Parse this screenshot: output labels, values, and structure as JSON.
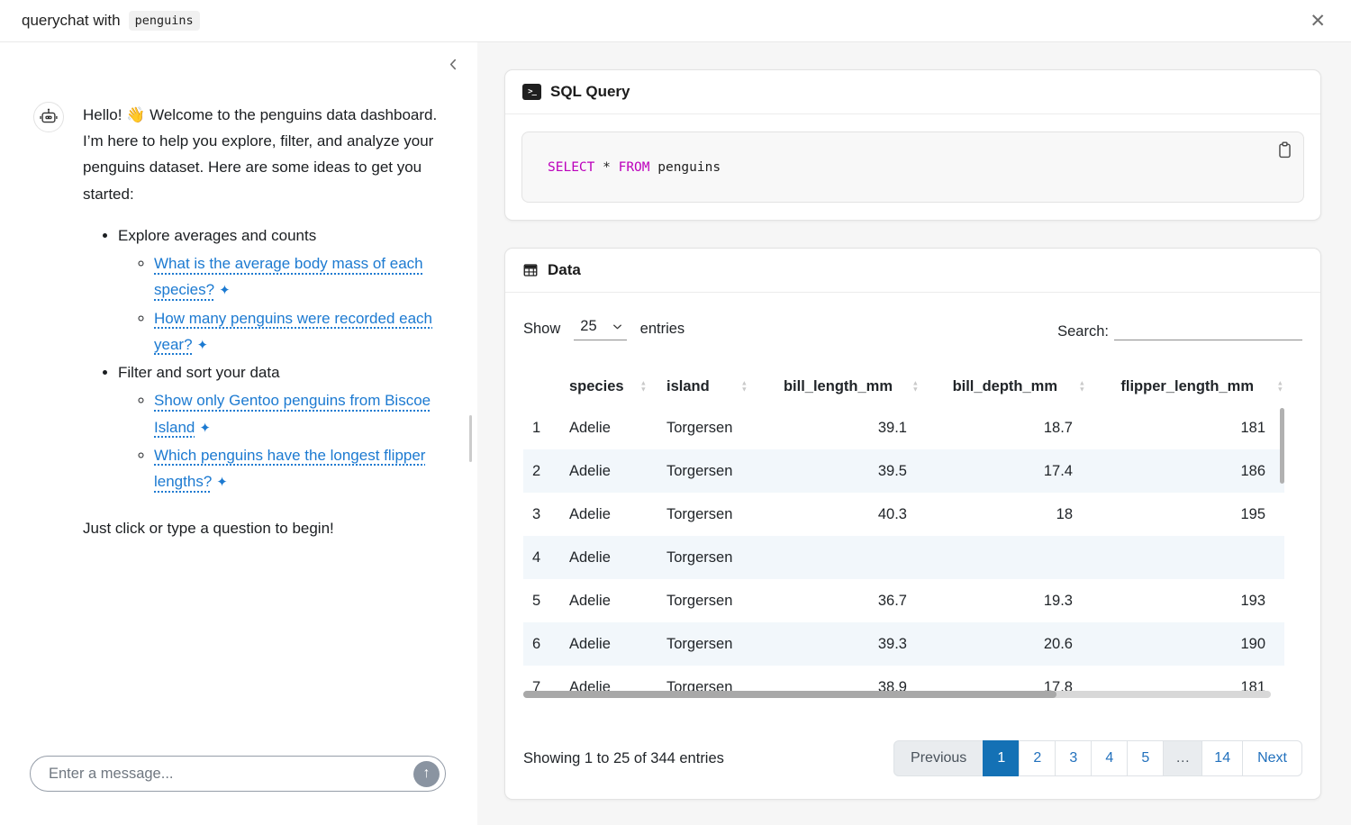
{
  "colors": {
    "link_blue": "#1c7ad1",
    "pagination_blue": "#2271bd",
    "pagination_active_bg": "#1471b5",
    "sql_keyword": "#bc00bc",
    "row_stripe": "#f2f7fb"
  },
  "icons": {
    "close": "✕",
    "sparkle": "✦",
    "send_arrow": "↑",
    "sort_up": "▲",
    "sort_down": "▼",
    "terminal": ">_"
  },
  "topbar": {
    "title_prefix": "querychat with",
    "title_code": "penguins"
  },
  "chat": {
    "greeting": "Hello! 👋 Welcome to the penguins data dashboard. I’m here to help you explore, filter, and analyze your penguins dataset. Here are some ideas to get you started:",
    "groups": [
      {
        "label": "Explore averages and counts",
        "links": [
          "What is the average body mass of each species?",
          "How many penguins were recorded each year?"
        ]
      },
      {
        "label": "Filter and sort your data",
        "links": [
          "Show only Gentoo penguins from Biscoe Island",
          "Which penguins have the longest flipper lengths?"
        ]
      }
    ],
    "closing": "Just click or type a question to begin!",
    "input_placeholder": "Enter a message..."
  },
  "sql_card": {
    "title": "SQL Query",
    "code": [
      {
        "text": "SELECT",
        "keyword": true
      },
      {
        "text": " * ",
        "keyword": false
      },
      {
        "text": "FROM",
        "keyword": true
      },
      {
        "text": " penguins",
        "keyword": false
      }
    ]
  },
  "data_card": {
    "title": "Data",
    "show_label": "Show",
    "page_size": "25",
    "entries_label": "entries",
    "search_label": "Search:",
    "search_value": "",
    "columns": [
      {
        "label": "",
        "align": "left",
        "sortable": false
      },
      {
        "label": "species",
        "align": "left",
        "sortable": true
      },
      {
        "label": "island",
        "align": "left",
        "sortable": true
      },
      {
        "label": "bill_length_mm",
        "align": "right",
        "sortable": true
      },
      {
        "label": "bill_depth_mm",
        "align": "right",
        "sortable": true
      },
      {
        "label": "flipper_length_mm",
        "align": "right",
        "sortable": true
      }
    ],
    "rows": [
      [
        "1",
        "Adelie",
        "Torgersen",
        "39.1",
        "18.7",
        "181"
      ],
      [
        "2",
        "Adelie",
        "Torgersen",
        "39.5",
        "17.4",
        "186"
      ],
      [
        "3",
        "Adelie",
        "Torgersen",
        "40.3",
        "18",
        "195"
      ],
      [
        "4",
        "Adelie",
        "Torgersen",
        "",
        "",
        ""
      ],
      [
        "5",
        "Adelie",
        "Torgersen",
        "36.7",
        "19.3",
        "193"
      ],
      [
        "6",
        "Adelie",
        "Torgersen",
        "39.3",
        "20.6",
        "190"
      ],
      [
        "7",
        "Adelie",
        "Torgersen",
        "38.9",
        "17.8",
        "181"
      ]
    ],
    "info": "Showing 1 to 25 of 344 entries",
    "pagination": [
      {
        "label": "Previous",
        "type": "disabled"
      },
      {
        "label": "1",
        "type": "active"
      },
      {
        "label": "2",
        "type": "link"
      },
      {
        "label": "3",
        "type": "link"
      },
      {
        "label": "4",
        "type": "link"
      },
      {
        "label": "5",
        "type": "link"
      },
      {
        "label": "…",
        "type": "disabled"
      },
      {
        "label": "14",
        "type": "link"
      },
      {
        "label": "Next",
        "type": "link"
      }
    ]
  }
}
